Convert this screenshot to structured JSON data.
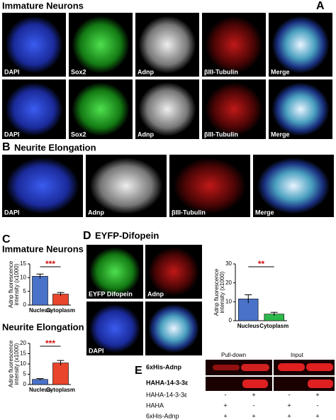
{
  "figure": {
    "panel_a": {
      "letter": "A",
      "title": "Immature Neurons",
      "row1": [
        "DAPI",
        "Sox2",
        "Adnp",
        "βIII-Tubulin",
        "Merge"
      ],
      "row2": [
        "DAPI",
        "Sox2",
        "Adnp",
        "βIII-Tubulin",
        "Merge"
      ]
    },
    "panel_b": {
      "letter": "B",
      "title": "Neurite Elongation",
      "images": [
        "DAPI",
        "Adnp",
        "βIII-Tubulin",
        "Merge"
      ]
    },
    "panel_c": {
      "letter": "C"
    },
    "panel_d": {
      "letter": "D",
      "title": "EYFP-Difopein",
      "images": [
        "EYFP Difopein",
        "Adnp",
        "DAPI"
      ]
    },
    "panel_e": {
      "letter": "E",
      "headers": [
        "Pull-down",
        "Input"
      ],
      "blots": [
        "6xHis-Adnp",
        "HAHA-14-3-3ε"
      ],
      "conditions": [
        {
          "label": "HAHA-14-3-3ε",
          "marks": [
            "-",
            "+",
            "-",
            "+"
          ]
        },
        {
          "label": "HAHA",
          "marks": [
            "+",
            "-",
            "+",
            "-"
          ]
        },
        {
          "label": "6xHis-Adnp",
          "marks": [
            "+",
            "+",
            "+",
            "+"
          ]
        }
      ]
    }
  },
  "chart_data": [
    {
      "type": "bar",
      "title": "Immature Neurons",
      "y_label": [
        "Adnp fluorescence",
        "intensity (x1000)"
      ],
      "categories": [
        "Nucleus",
        "Cytoplasm"
      ],
      "values": [
        10.5,
        4
      ],
      "errors": [
        0.8,
        0.6
      ],
      "colors": [
        "#4a72c8",
        "#e8452c"
      ],
      "ylim": [
        0,
        15
      ],
      "yticks": [
        0,
        5,
        10,
        15
      ],
      "annotation": "***"
    },
    {
      "type": "bar",
      "title": "Neurite Elongation",
      "y_label": [
        "Adnp fluorescence",
        "intensity (x1000)"
      ],
      "categories": [
        "Nucleus",
        "Cytoplasm"
      ],
      "values": [
        2.5,
        10.5
      ],
      "errors": [
        0.4,
        1.2
      ],
      "colors": [
        "#4a72c8",
        "#e8452c"
      ],
      "ylim": [
        0,
        20
      ],
      "yticks": [
        0,
        5,
        10,
        15,
        20
      ],
      "annotation": "***"
    },
    {
      "type": "bar",
      "y_label": [
        "Adnp fluorescence",
        "intensity (x1000)"
      ],
      "categories": [
        "Nucleus",
        "Cytoplasm"
      ],
      "values": [
        11.5,
        3.5
      ],
      "errors": [
        2.2,
        0.9
      ],
      "colors": [
        "#4a72c8",
        "#2db84a"
      ],
      "ylim": [
        0,
        30
      ],
      "yticks": [
        0,
        10,
        20,
        30
      ],
      "annotation": "**"
    }
  ]
}
